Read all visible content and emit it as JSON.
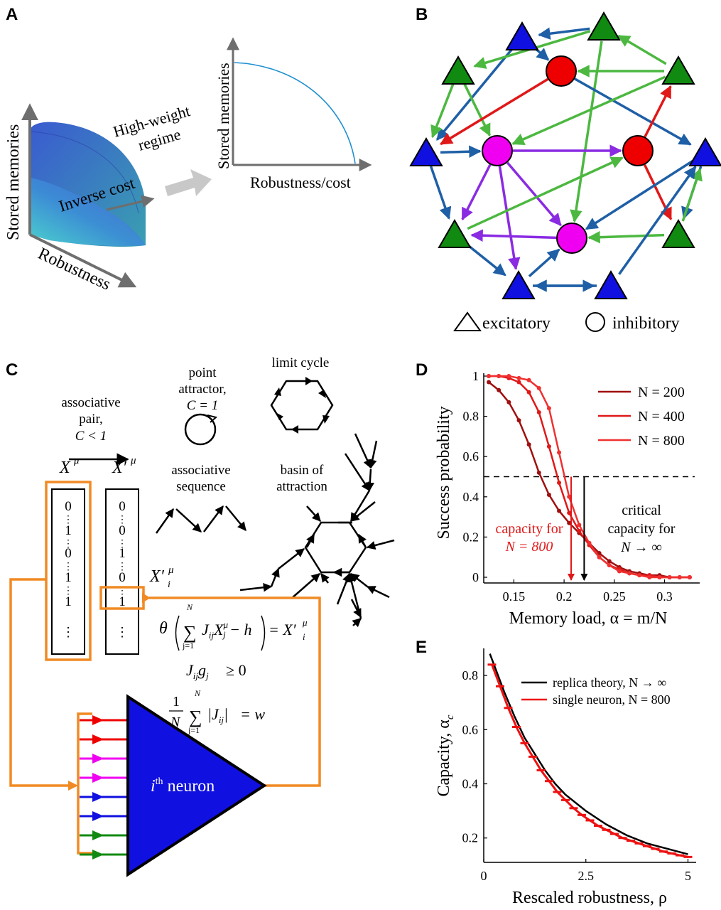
{
  "panels": {
    "A": {
      "label": "A",
      "surface_ylabel": "Stored memories",
      "surface_xlabel": "Robustness",
      "surface_zlabel": "Inverse cost",
      "transition_label_line1": "High-weight",
      "transition_label_line2": "regime",
      "plot_ylabel": "Stored memories",
      "plot_xlabel": "Robustness/cost"
    },
    "B": {
      "label": "B",
      "legend_excitatory": "excitatory",
      "legend_inhibitory": "inhibitory",
      "colors": {
        "blue": "#1010e0",
        "green": "#108a10",
        "red": "#ee0000",
        "magenta": "#f000f0",
        "edge_blue": "#1f5fa6",
        "edge_green": "#4cb840",
        "edge_red": "#e01818",
        "edge_purple": "#8a2be2"
      }
    },
    "C": {
      "label": "C",
      "point_attractor_l1": "point",
      "point_attractor_l2": "attractor,",
      "point_attractor_l3": "C = 1",
      "limit_cycle": "limit cycle",
      "assoc_pair_l1": "associative",
      "assoc_pair_l2": "pair,",
      "assoc_pair_l3": "C < 1",
      "assoc_seq_l1": "associative",
      "assoc_seq_l2": "sequence",
      "basin_l1": "basin of",
      "basin_l2": "attraction",
      "x_mu": "X",
      "x_prime_mu": "X′",
      "mu": "μ",
      "xi_prime": "X′",
      "xi_sub": "i",
      "vector1": [
        "0",
        "1",
        "0",
        "1",
        "1"
      ],
      "vector2": [
        "0",
        "0",
        "1",
        "0",
        "1"
      ],
      "dots": "⋮",
      "eq1_lhs": "θ",
      "eq1_sum_top": "N",
      "eq1_sum_bottom": "j=1",
      "eq1_body": "J",
      "eq1_rhs": "= X′",
      "eq2": "J",
      "eq2_rest": "g",
      "eq2_tail": "≥ 0",
      "eq3_frac_top": "1",
      "eq3_frac_bottom": "N",
      "eq3_rhs": "= w",
      "neuron_label": "i",
      "neuron_sup": "th",
      "neuron_word": " neuron",
      "input_arrow_colors": [
        "#ee0000",
        "#ee0000",
        "#f000f0",
        "#f000f0",
        "#1010e0",
        "#1010e0",
        "#108a10",
        "#108a10"
      ],
      "orange": "#f08a24",
      "neuron_color": "#1010e0"
    },
    "D": {
      "label": "D",
      "ylabel": "Success probability",
      "xlabel": "Memory load, α = m/N",
      "annot_red_l1": "capacity for",
      "annot_red_l2": "N = 800",
      "annot_black_l1": "critical",
      "annot_black_l2": "capacity for",
      "annot_black_l3": "N → ∞"
    },
    "E": {
      "label": "E",
      "ylabel": "Capacity, α",
      "ylabel_sub": "c",
      "xlabel": "Rescaled robustness, ρ"
    }
  },
  "chart_data": [
    {
      "id": "D",
      "type": "line",
      "xlabel": "Memory load, α = m/N",
      "ylabel": "Success probability",
      "xlim": [
        0.12,
        0.335
      ],
      "ylim": [
        0,
        1
      ],
      "xticks": [
        "0.15",
        "0.2",
        "0.25",
        "0.3"
      ],
      "xtick_values": [
        0.15,
        0.2,
        0.25,
        0.3
      ],
      "yticks": [
        "0",
        "0.2",
        "0.4",
        "0.6",
        "0.8",
        "1"
      ],
      "ytick_values": [
        0,
        0.2,
        0.4,
        0.6,
        0.8,
        1
      ],
      "legend_position": "top-right",
      "reference_line_y": 0.5,
      "capacity_N800": 0.207,
      "critical_capacity": 0.22,
      "series": [
        {
          "name": "N = 200",
          "color": "#a00f0f",
          "x": [
            0.125,
            0.135,
            0.145,
            0.155,
            0.165,
            0.175,
            0.185,
            0.195,
            0.205,
            0.215,
            0.225,
            0.235,
            0.245,
            0.255,
            0.265,
            0.275,
            0.285,
            0.295,
            0.305,
            0.315,
            0.325
          ],
          "y": [
            0.97,
            0.93,
            0.87,
            0.78,
            0.66,
            0.52,
            0.41,
            0.33,
            0.27,
            0.22,
            0.17,
            0.12,
            0.08,
            0.05,
            0.03,
            0.02,
            0.01,
            0.01,
            0.0,
            0.0,
            0.0
          ]
        },
        {
          "name": "N = 400",
          "color": "#e01818",
          "x": [
            0.125,
            0.135,
            0.145,
            0.155,
            0.165,
            0.175,
            0.185,
            0.195,
            0.205,
            0.215,
            0.225,
            0.235,
            0.245,
            0.255,
            0.265,
            0.275,
            0.285,
            0.295,
            0.305,
            0.315,
            0.325
          ],
          "y": [
            1.0,
            1.0,
            0.99,
            0.97,
            0.92,
            0.82,
            0.65,
            0.47,
            0.32,
            0.23,
            0.16,
            0.1,
            0.06,
            0.04,
            0.02,
            0.01,
            0.01,
            0.0,
            0.0,
            0.0,
            0.0
          ]
        },
        {
          "name": "N = 800",
          "color": "#f03030",
          "x": [
            0.125,
            0.135,
            0.145,
            0.155,
            0.165,
            0.175,
            0.185,
            0.195,
            0.205,
            0.215,
            0.225,
            0.235,
            0.245,
            0.255,
            0.265,
            0.275,
            0.285,
            0.295,
            0.305,
            0.315,
            0.325
          ],
          "y": [
            1.0,
            1.0,
            1.0,
            0.99,
            0.98,
            0.94,
            0.84,
            0.62,
            0.4,
            0.26,
            0.17,
            0.1,
            0.06,
            0.03,
            0.02,
            0.01,
            0.0,
            0.0,
            0.0,
            0.0,
            0.0
          ]
        }
      ]
    },
    {
      "id": "E",
      "type": "line",
      "xlabel": "Rescaled robustness, ρ",
      "ylabel": "Capacity, αc",
      "xlim": [
        0,
        5.2
      ],
      "ylim": [
        0.11,
        0.9
      ],
      "xticks": [
        "0",
        "2.5",
        "5"
      ],
      "xtick_values": [
        0,
        2.5,
        5
      ],
      "yticks": [
        "0.2",
        "0.4",
        "0.6",
        "0.8"
      ],
      "ytick_values": [
        0.2,
        0.4,
        0.6,
        0.8
      ],
      "legend_position": "top-right",
      "series": [
        {
          "name": "replica theory, N → ∞",
          "color": "#000000",
          "x": [
            0.15,
            0.3,
            0.5,
            0.75,
            1.0,
            1.25,
            1.5,
            1.75,
            2.0,
            2.5,
            3.0,
            3.5,
            4.0,
            4.5,
            5.0
          ],
          "y": [
            0.88,
            0.82,
            0.74,
            0.65,
            0.57,
            0.51,
            0.45,
            0.4,
            0.36,
            0.3,
            0.25,
            0.21,
            0.18,
            0.16,
            0.14
          ]
        },
        {
          "name": "single neuron, N = 800",
          "color": "#ee1111",
          "x": [
            0.2,
            0.4,
            0.6,
            0.8,
            1.0,
            1.2,
            1.4,
            1.6,
            1.8,
            2.0,
            2.2,
            2.4,
            2.6,
            2.8,
            3.0,
            3.2,
            3.4,
            3.6,
            3.8,
            4.0,
            4.2,
            4.4,
            4.6,
            4.8,
            5.0
          ],
          "y": [
            0.84,
            0.76,
            0.68,
            0.61,
            0.55,
            0.5,
            0.45,
            0.41,
            0.37,
            0.34,
            0.31,
            0.285,
            0.265,
            0.245,
            0.23,
            0.215,
            0.2,
            0.19,
            0.18,
            0.17,
            0.16,
            0.15,
            0.143,
            0.136,
            0.13
          ]
        }
      ]
    }
  ]
}
